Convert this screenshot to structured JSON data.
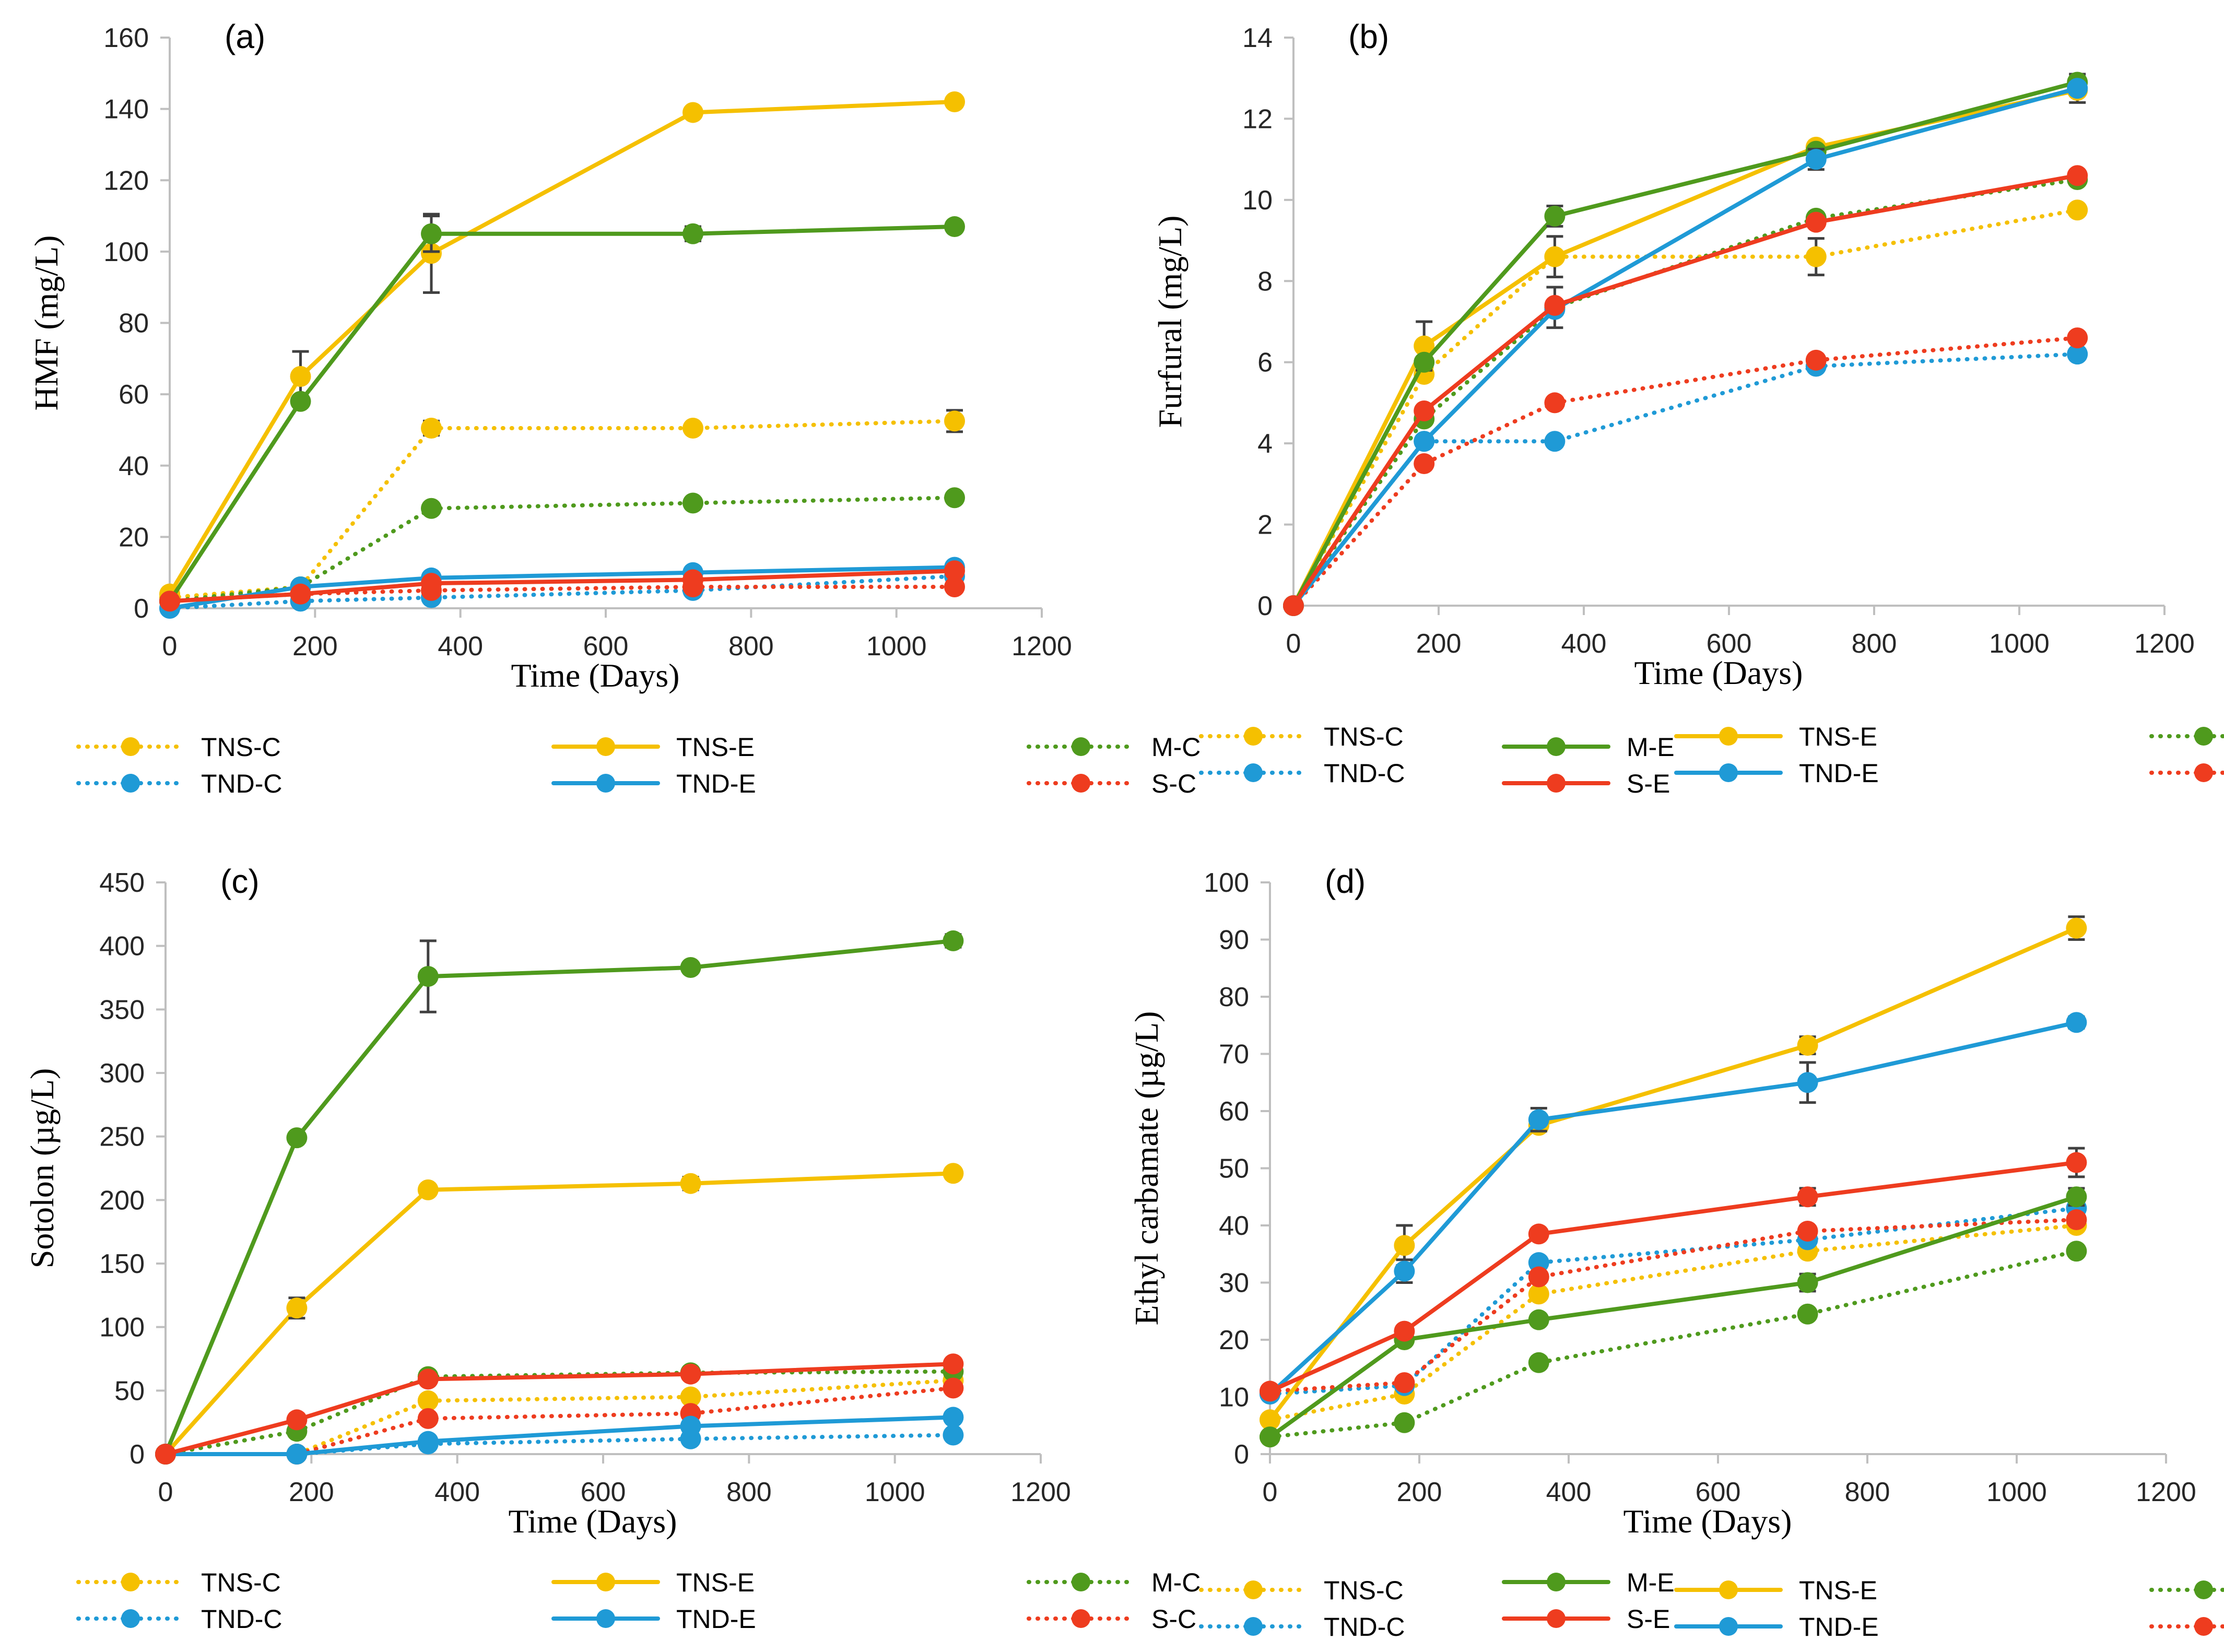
{
  "series_styles": {
    "TNS-C": {
      "color": "#f5c000",
      "dashed": true
    },
    "TNS-E": {
      "color": "#f5c000",
      "dashed": false
    },
    "M-C": {
      "color": "#4f9a1d",
      "dashed": true
    },
    "M-E": {
      "color": "#4f9a1d",
      "dashed": false
    },
    "TND-C": {
      "color": "#1f9ad6",
      "dashed": true
    },
    "TND-E": {
      "color": "#1f9ad6",
      "dashed": false
    },
    "S-C": {
      "color": "#ee3c1f",
      "dashed": true
    },
    "S-E": {
      "color": "#ee3c1f",
      "dashed": false
    }
  },
  "legend_order": [
    "TNS-C",
    "TNS-E",
    "M-C",
    "M-E",
    "TND-C",
    "TND-E",
    "S-C",
    "S-E"
  ],
  "chart_data": [
    {
      "panel": "(a)",
      "type": "line",
      "title": "",
      "xlabel": "Time (Days)",
      "ylabel": "HMF (mg/L)",
      "xlim": [
        0,
        1200
      ],
      "xticks": [
        0,
        200,
        400,
        600,
        800,
        1000,
        1200
      ],
      "ylim": [
        0,
        160
      ],
      "yticks": [
        0,
        20,
        40,
        60,
        80,
        100,
        120,
        140,
        160
      ],
      "x": [
        0,
        180,
        360,
        720,
        1080
      ],
      "series": [
        {
          "name": "TNS-C",
          "values": [
            3,
            6,
            50.5,
            50.5,
            52.5
          ],
          "errors": [
            0,
            0,
            2,
            0,
            3
          ]
        },
        {
          "name": "TNS-E",
          "values": [
            4,
            65,
            99.5,
            139,
            142
          ],
          "errors": [
            0,
            7,
            11,
            0,
            0
          ]
        },
        {
          "name": "M-C",
          "values": [
            2,
            6,
            28,
            29.5,
            31
          ],
          "errors": [
            0,
            0,
            0,
            0,
            0
          ]
        },
        {
          "name": "M-E",
          "values": [
            2,
            58,
            105,
            105,
            107
          ],
          "errors": [
            0,
            0,
            5,
            2,
            0
          ]
        },
        {
          "name": "TND-C",
          "values": [
            0,
            2,
            3,
            5,
            9
          ],
          "errors": [
            0,
            0,
            0,
            0,
            0
          ]
        },
        {
          "name": "TND-E",
          "values": [
            0,
            6,
            8.5,
            10,
            11.5
          ],
          "errors": [
            0,
            0,
            0,
            0,
            0
          ]
        },
        {
          "name": "S-C",
          "values": [
            2,
            4,
            5,
            6,
            6
          ],
          "errors": [
            0,
            0,
            0,
            0,
            0
          ]
        },
        {
          "name": "S-E",
          "values": [
            2,
            4,
            7,
            8,
            10.5
          ],
          "errors": [
            0,
            0,
            0,
            0,
            0
          ]
        }
      ]
    },
    {
      "panel": "(b)",
      "type": "line",
      "title": "",
      "xlabel": "Time (Days)",
      "ylabel": "Furfural (mg/L)",
      "xlim": [
        0,
        1200
      ],
      "xticks": [
        0,
        200,
        400,
        600,
        800,
        1000,
        1200
      ],
      "ylim": [
        0,
        14
      ],
      "yticks": [
        0,
        2,
        4,
        6,
        8,
        10,
        12,
        14
      ],
      "x": [
        0,
        180,
        360,
        720,
        1080
      ],
      "series": [
        {
          "name": "TNS-C",
          "values": [
            0,
            5.7,
            8.6,
            8.6,
            9.75
          ],
          "errors": [
            0,
            0,
            0,
            0.45,
            0
          ]
        },
        {
          "name": "TNS-E",
          "values": [
            0,
            6.4,
            8.6,
            11.3,
            12.7
          ],
          "errors": [
            0,
            0.6,
            0.5,
            0,
            0.3
          ]
        },
        {
          "name": "M-C",
          "values": [
            0,
            4.6,
            7.35,
            9.55,
            10.5
          ],
          "errors": [
            0,
            0,
            0.5,
            0,
            0
          ]
        },
        {
          "name": "M-E",
          "values": [
            0,
            6.0,
            9.6,
            11.2,
            12.9
          ],
          "errors": [
            0,
            0,
            0.25,
            0,
            0.2
          ]
        },
        {
          "name": "TND-C",
          "values": [
            0,
            4.05,
            4.05,
            5.9,
            6.2
          ],
          "errors": [
            0,
            0,
            0,
            0,
            0
          ]
        },
        {
          "name": "TND-E",
          "values": [
            0,
            4.05,
            7.3,
            11.0,
            12.75
          ],
          "errors": [
            0,
            0,
            0,
            0.25,
            0
          ]
        },
        {
          "name": "S-C",
          "values": [
            0,
            3.5,
            5.0,
            6.05,
            6.6
          ],
          "errors": [
            0,
            0,
            0,
            0,
            0
          ]
        },
        {
          "name": "S-E",
          "values": [
            0,
            4.8,
            7.4,
            9.45,
            10.6
          ],
          "errors": [
            0,
            0,
            0,
            0,
            0
          ]
        }
      ]
    },
    {
      "panel": "(c)",
      "type": "line",
      "title": "",
      "xlabel": "Time (Days)",
      "ylabel": "Sotolon (µg/L)",
      "xlim": [
        0,
        1200
      ],
      "xticks": [
        0,
        200,
        400,
        600,
        800,
        1000,
        1200
      ],
      "ylim": [
        0,
        450
      ],
      "yticks": [
        0,
        50,
        100,
        150,
        200,
        250,
        300,
        350,
        400,
        450
      ],
      "x": [
        0,
        180,
        360,
        720,
        1080
      ],
      "series": [
        {
          "name": "TNS-C",
          "values": [
            0,
            0,
            42,
            45,
            58
          ],
          "errors": [
            0,
            0,
            0,
            0,
            0
          ]
        },
        {
          "name": "TNS-E",
          "values": [
            0,
            115,
            208,
            213,
            221
          ],
          "errors": [
            0,
            8,
            0,
            5,
            0
          ]
        },
        {
          "name": "M-C",
          "values": [
            0,
            18,
            61,
            64,
            65
          ],
          "errors": [
            0,
            0,
            0,
            0,
            0
          ]
        },
        {
          "name": "M-E",
          "values": [
            0,
            249,
            376,
            383,
            404
          ],
          "errors": [
            0,
            0,
            28,
            0,
            5
          ]
        },
        {
          "name": "TND-C",
          "values": [
            0,
            0,
            8,
            12,
            15
          ],
          "errors": [
            0,
            0,
            0,
            0,
            0
          ]
        },
        {
          "name": "TND-E",
          "values": [
            0,
            0,
            10,
            22,
            29
          ],
          "errors": [
            0,
            0,
            0,
            0,
            0
          ]
        },
        {
          "name": "S-C",
          "values": [
            0,
            0,
            28,
            32,
            52
          ],
          "errors": [
            0,
            0,
            0,
            0,
            0
          ]
        },
        {
          "name": "S-E",
          "values": [
            0,
            27,
            59,
            63,
            71
          ],
          "errors": [
            0,
            0,
            0,
            0,
            0
          ]
        }
      ]
    },
    {
      "panel": "(d)",
      "type": "line",
      "title": "",
      "xlabel": "Time (Days)",
      "ylabel": "Ethyl carbamate (µg/L)",
      "xlim": [
        0,
        1200
      ],
      "xticks": [
        0,
        200,
        400,
        600,
        800,
        1000,
        1200
      ],
      "ylim": [
        0,
        100
      ],
      "yticks": [
        0,
        10,
        20,
        30,
        40,
        50,
        60,
        70,
        80,
        90,
        100
      ],
      "x": [
        0,
        180,
        360,
        720,
        1080
      ],
      "series": [
        {
          "name": "TNS-C",
          "values": [
            6,
            10.5,
            28,
            35.5,
            40
          ],
          "errors": [
            0,
            0,
            0,
            0,
            0
          ]
        },
        {
          "name": "TNS-E",
          "values": [
            6,
            36.5,
            57.5,
            71.5,
            92
          ],
          "errors": [
            0,
            3.5,
            0,
            1.5,
            2
          ]
        },
        {
          "name": "M-C",
          "values": [
            3,
            5.5,
            16,
            24.5,
            35.5
          ],
          "errors": [
            0,
            0,
            0,
            0,
            0
          ]
        },
        {
          "name": "M-E",
          "values": [
            3,
            20,
            23.5,
            30,
            45
          ],
          "errors": [
            0,
            0,
            0,
            1.5,
            1.5
          ]
        },
        {
          "name": "TND-C",
          "values": [
            10.5,
            12,
            33.5,
            37.5,
            43
          ],
          "errors": [
            0,
            0,
            0,
            0,
            0
          ]
        },
        {
          "name": "TND-E",
          "values": [
            10.5,
            32,
            58.5,
            65,
            75.5
          ],
          "errors": [
            0,
            2,
            2,
            3.5,
            1
          ]
        },
        {
          "name": "S-C",
          "values": [
            11,
            12.5,
            31,
            39,
            41
          ],
          "errors": [
            0,
            0,
            0,
            0,
            0
          ]
        },
        {
          "name": "S-E",
          "values": [
            11,
            21.5,
            38.5,
            45,
            51
          ],
          "errors": [
            0,
            0,
            0,
            1.5,
            2.5
          ]
        }
      ]
    }
  ]
}
